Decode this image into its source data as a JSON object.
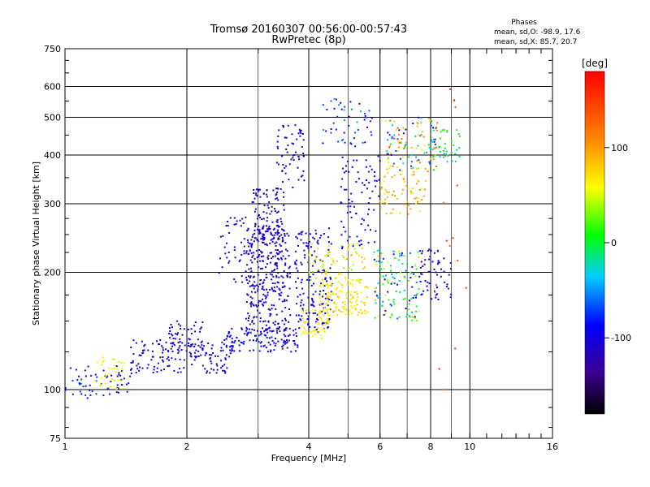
{
  "chart_data": {
    "type": "scatter",
    "title": "Tromsø 20160307 00:56:00-00:57:43",
    "subtitle": "RwPretec (8p)",
    "xlabel": "Frequency [MHz]",
    "ylabel": "Stationary phase Virtual Height [km]",
    "x_scale": "log",
    "y_scale": "log",
    "xlim": [
      1,
      16
    ],
    "ylim": [
      75,
      750
    ],
    "x_ticks": [
      1,
      2,
      4,
      6,
      8,
      10,
      16
    ],
    "x_tick_labels": [
      "1",
      "2",
      "4",
      "6",
      "8",
      "10",
      "16"
    ],
    "x_minor_grid": [
      3,
      5,
      7,
      9
    ],
    "y_ticks": [
      75,
      100,
      200,
      300,
      400,
      500,
      600,
      750
    ],
    "y_tick_labels": [
      "75",
      "100",
      "200",
      "300",
      "400",
      "500",
      "600",
      "750"
    ],
    "grid": true,
    "legend": {
      "title": "Phases",
      "line1": "mean, sd,O: -98.9, 17.6",
      "line2": "mean, sd,X: 85.7, 20.7"
    },
    "colorbar": {
      "label": "[deg]",
      "range": [
        -180,
        180
      ],
      "ticks": [
        100,
        0,
        -100
      ],
      "tick_labels": [
        "100",
        "0",
        "-100"
      ]
    },
    "clusters": [
      {
        "x": [
          1.0,
          1.45
        ],
        "y": [
          95,
          115
        ],
        "phase": [
          -110,
          -70
        ],
        "n": 60
      },
      {
        "x": [
          1.18,
          1.4
        ],
        "y": [
          100,
          122
        ],
        "phase": [
          40,
          75
        ],
        "n": 35
      },
      {
        "x": [
          1.45,
          2.6
        ],
        "y": [
          110,
          135
        ],
        "phase": [
          -120,
          -95
        ],
        "n": 160
      },
      {
        "x": [
          1.8,
          2.2
        ],
        "y": [
          125,
          150
        ],
        "phase": [
          -110,
          -85
        ],
        "n": 50
      },
      {
        "x": [
          2.5,
          3.8
        ],
        "y": [
          125,
          145
        ],
        "phase": [
          -110,
          -80
        ],
        "n": 120
      },
      {
        "x": [
          2.8,
          3.6
        ],
        "y": [
          140,
          260
        ],
        "phase": [
          -125,
          -95
        ],
        "n": 280
      },
      {
        "x": [
          2.9,
          3.5
        ],
        "y": [
          240,
          330
        ],
        "phase": [
          -125,
          -95
        ],
        "n": 90
      },
      {
        "x": [
          3.3,
          3.9
        ],
        "y": [
          330,
          480
        ],
        "phase": [
          -120,
          -90
        ],
        "n": 60
      },
      {
        "x": [
          2.4,
          3.4
        ],
        "y": [
          180,
          280
        ],
        "phase": [
          -120,
          -95
        ],
        "n": 110
      },
      {
        "x": [
          3.7,
          4.6
        ],
        "y": [
          140,
          260
        ],
        "phase": [
          -120,
          -90
        ],
        "n": 160
      },
      {
        "x": [
          3.8,
          4.5
        ],
        "y": [
          135,
          160
        ],
        "phase": [
          55,
          80
        ],
        "n": 50
      },
      {
        "x": [
          4.2,
          5.6
        ],
        "y": [
          155,
          190
        ],
        "phase": [
          50,
          85
        ],
        "n": 130
      },
      {
        "x": [
          4.0,
          5.5
        ],
        "y": [
          190,
          240
        ],
        "phase": [
          30,
          90
        ],
        "n": 80
      },
      {
        "x": [
          4.8,
          6.0
        ],
        "y": [
          230,
          400
        ],
        "phase": [
          -115,
          -80
        ],
        "n": 80
      },
      {
        "x": [
          4.3,
          5.8
        ],
        "y": [
          420,
          560
        ],
        "phase": [
          -115,
          -40
        ],
        "n": 50
      },
      {
        "x": [
          5.8,
          7.5
        ],
        "y": [
          150,
          230
        ],
        "phase": [
          -110,
          60
        ],
        "n": 130
      },
      {
        "x": [
          6.0,
          7.8
        ],
        "y": [
          280,
          380
        ],
        "phase": [
          60,
          110
        ],
        "n": 70
      },
      {
        "x": [
          6.2,
          8.3
        ],
        "y": [
          360,
          500
        ],
        "phase": [
          -110,
          140
        ],
        "n": 110
      },
      {
        "x": [
          7.5,
          9.0
        ],
        "y": [
          170,
          230
        ],
        "phase": [
          -120,
          -90
        ],
        "n": 60
      },
      {
        "x": [
          8.0,
          9.5
        ],
        "y": [
          380,
          470
        ],
        "phase": [
          -40,
          20
        ],
        "n": 40
      },
      {
        "x": [
          7.8,
          10.0
        ],
        "y": [
          80,
          620
        ],
        "phase": [
          120,
          160
        ],
        "n": 18
      }
    ]
  }
}
